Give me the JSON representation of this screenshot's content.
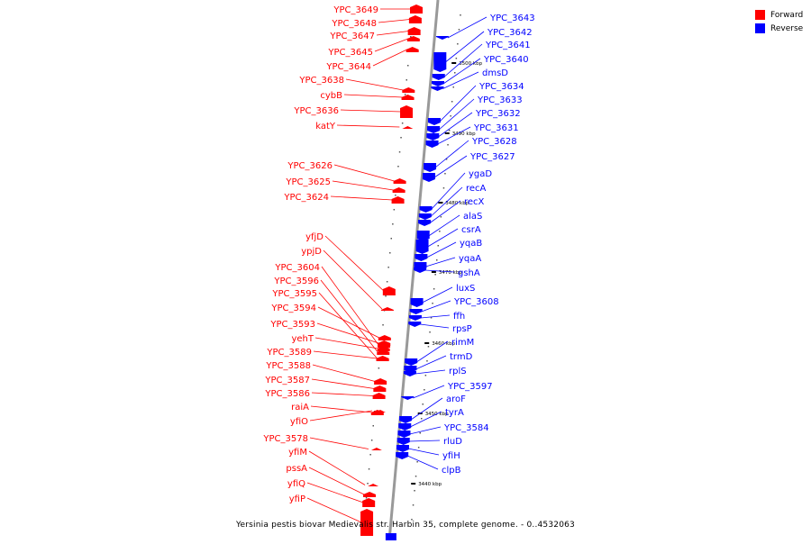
{
  "legend": [
    {
      "label": "Forward",
      "color": "#ff0000"
    },
    {
      "label": "Reverse",
      "color": "#0000ff"
    }
  ],
  "caption": "Yersinia pestis biovar Medievalis str. Harbin 35, complete genome. - 0..4532063",
  "colors": {
    "forward": "#ff0000",
    "reverse": "#0000ff",
    "axis": "#999999"
  },
  "scale_labels": [
    "3500 kbp",
    "3490 kbp",
    "3480 kbp",
    "3470 kbp",
    "3460 kbp",
    "3450 kbp",
    "3440 kbp"
  ],
  "forward_genes": [
    "YPC_3649",
    "YPC_3648",
    "YPC_3647",
    "YPC_3645",
    "YPC_3644",
    "YPC_3638",
    "cybB",
    "YPC_3636",
    "katY",
    "YPC_3626",
    "YPC_3625",
    "YPC_3624",
    "yfjD",
    "ypjD",
    "YPC_3604",
    "YPC_3596",
    "YPC_3595",
    "YPC_3594",
    "YPC_3593",
    "yehT",
    "YPC_3589",
    "YPC_3588",
    "YPC_3587",
    "YPC_3586",
    "raiA",
    "yfiO",
    "YPC_3578",
    "yfiM",
    "pssA",
    "yfiQ",
    "yfiP"
  ],
  "reverse_genes": [
    "YPC_3643",
    "YPC_3642",
    "YPC_3641",
    "YPC_3640",
    "dmsD",
    "YPC_3634",
    "YPC_3633",
    "YPC_3632",
    "YPC_3631",
    "YPC_3628",
    "YPC_3627",
    "ygaD",
    "recA",
    "recX",
    "alaS",
    "csrA",
    "yqaB",
    "yqaA",
    "gshA",
    "luxS",
    "YPC_3608",
    "ffh",
    "rpsP",
    "rimM",
    "trmD",
    "rplS",
    "YPC_3597",
    "aroF",
    "tyrA",
    "YPC_3584",
    "rluD",
    "yfiH",
    "clpB"
  ]
}
